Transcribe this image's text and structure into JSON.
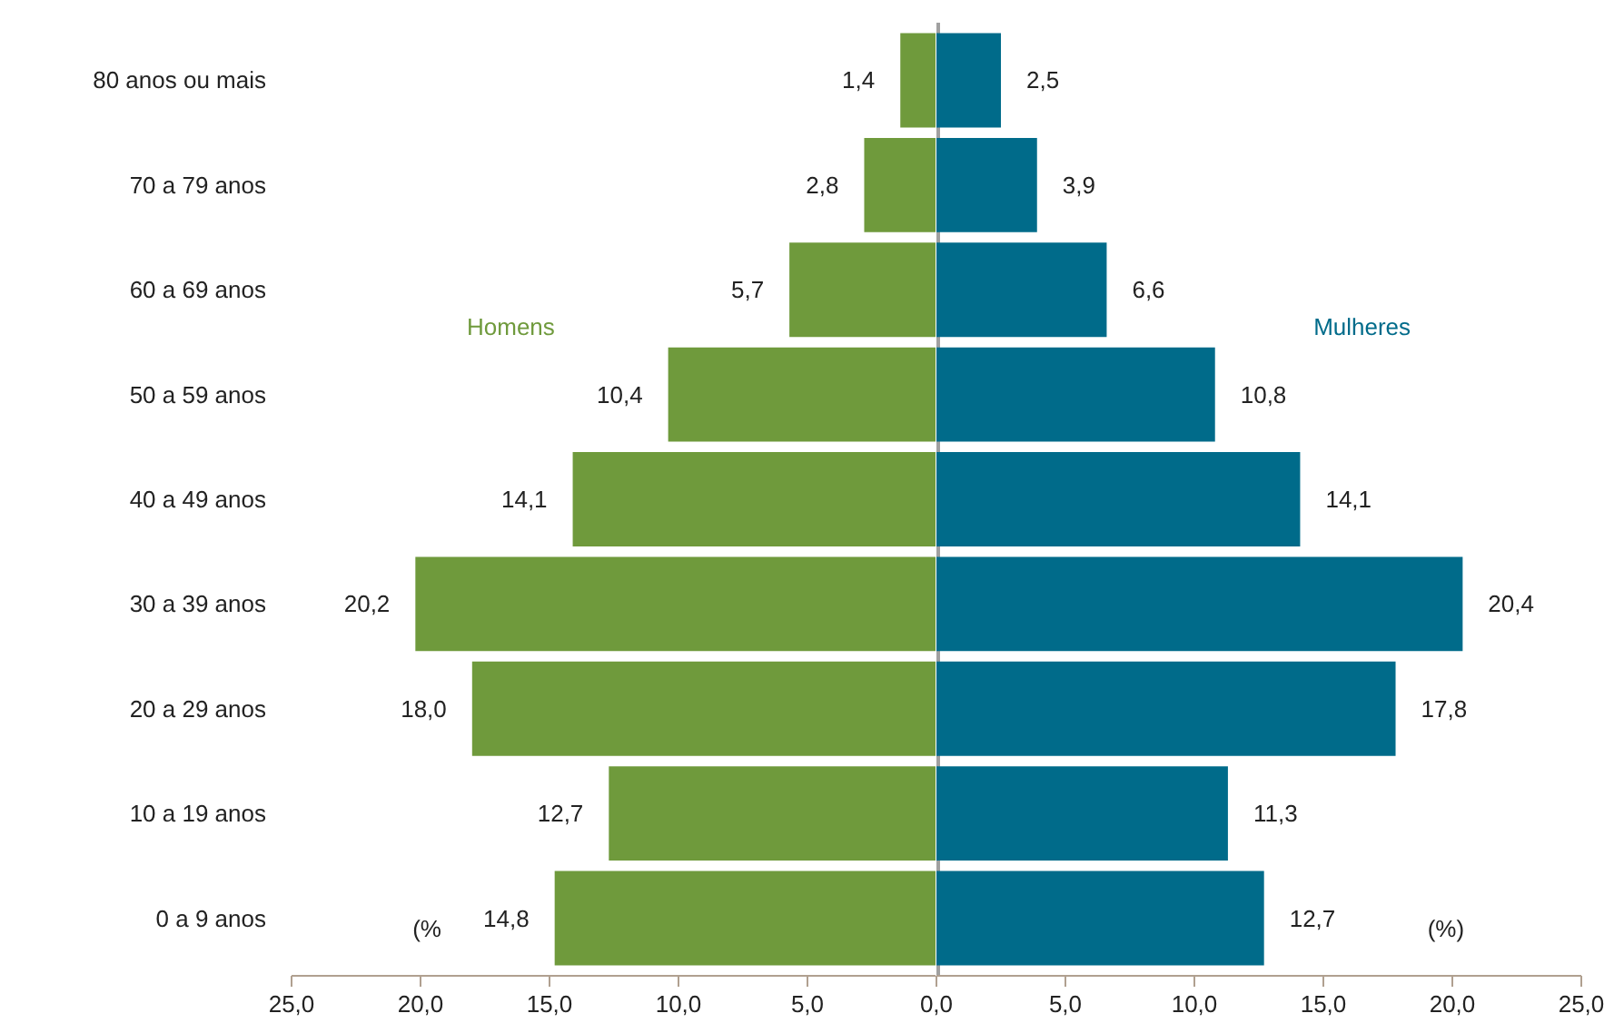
{
  "chart_data": [
    {
      "type": "bar",
      "orientation": "horizontal",
      "legend": false,
      "categories": [
        "80 anos ou mais",
        "70 a 79 anos",
        "60 a 69 anos",
        "50 a 59 anos",
        "40 a 49 anos",
        "30 a 39 anos",
        "20 a 29 anos",
        "10 a 19 anos",
        "0 a 9 anos"
      ],
      "series": [
        {
          "name": "Homens",
          "color": "#6f9a3c",
          "values": [
            1.4,
            2.8,
            5.7,
            10.4,
            14.1,
            20.2,
            18.0,
            12.7,
            14.8
          ],
          "value_labels": [
            "1,4",
            "2,8",
            "5,7",
            "10,4",
            "14,1",
            "20,2",
            "18,0",
            "12,7",
            "14,8"
          ]
        }
      ],
      "xlim": [
        25,
        0
      ],
      "xticks": [
        {
          "value": 25,
          "label": "25,0"
        },
        {
          "value": 20,
          "label": "20,0"
        },
        {
          "value": 15,
          "label": "15,0"
        },
        {
          "value": 10,
          "label": "10,0"
        },
        {
          "value": 5,
          "label": "5,0"
        },
        {
          "value": 0,
          "label": null
        }
      ],
      "annotations": [
        "(%"
      ]
    },
    {
      "type": "bar",
      "orientation": "horizontal",
      "legend": false,
      "tick_labels": "x",
      "series": [
        {
          "name": "Mulheres",
          "color": "#006b8a",
          "values": [
            2.5,
            3.9,
            6.6,
            10.8,
            14.1,
            20.4,
            17.8,
            11.3,
            12.7
          ],
          "value_labels": [
            "2,5",
            "3,9",
            "6,6",
            "10,8",
            "14,1",
            "20,4",
            "17,8",
            "11,3",
            "12,7"
          ]
        }
      ],
      "xlim": [
        0,
        25
      ],
      "xticks": [
        {
          "value": 0,
          "label": "0,0"
        },
        {
          "value": 5,
          "label": "5,0"
        },
        {
          "value": 10,
          "label": "10,0"
        },
        {
          "value": 15,
          "label": "15,0"
        },
        {
          "value": 20,
          "label": "20,0"
        },
        {
          "value": 25,
          "label": "25,0"
        }
      ],
      "annotations": [
        "(%)"
      ]
    }
  ]
}
